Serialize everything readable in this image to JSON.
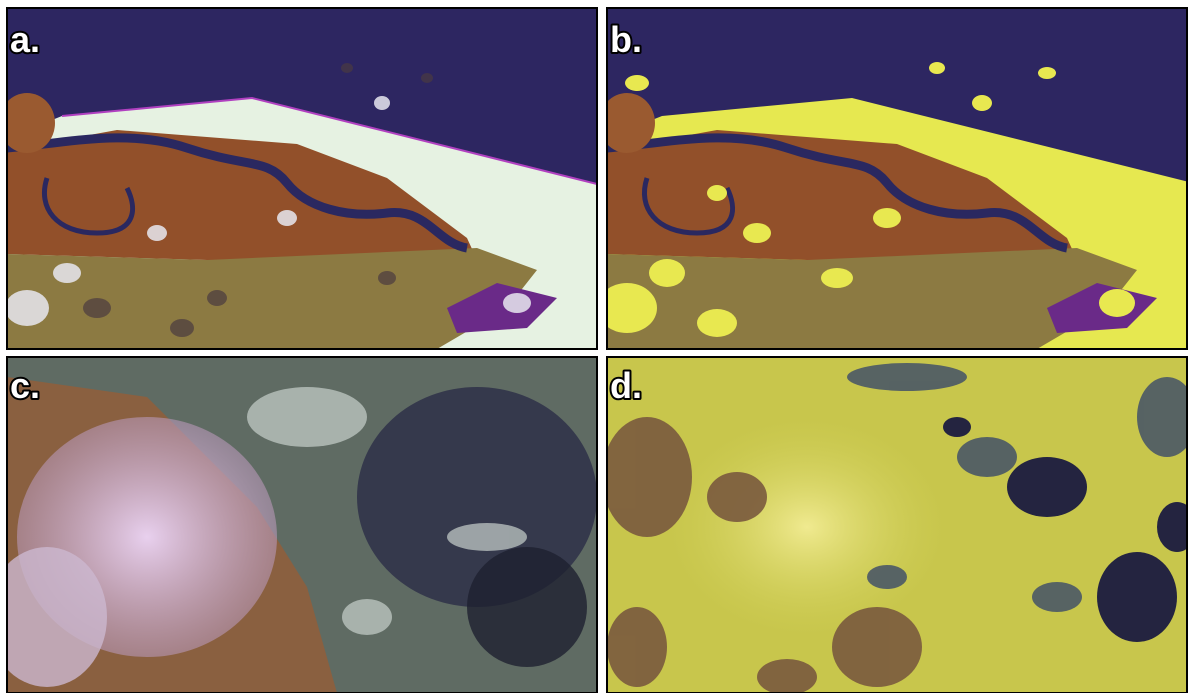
{
  "panels": [
    {
      "label": "a."
    },
    {
      "label": "b."
    },
    {
      "label": "c."
    },
    {
      "label": "d."
    }
  ]
}
